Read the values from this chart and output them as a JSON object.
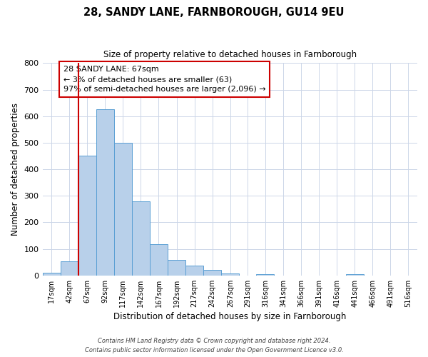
{
  "title": "28, SANDY LANE, FARNBOROUGH, GU14 9EU",
  "subtitle": "Size of property relative to detached houses in Farnborough",
  "xlabel": "Distribution of detached houses by size in Farnborough",
  "ylabel": "Number of detached properties",
  "bin_labels": [
    "17sqm",
    "42sqm",
    "67sqm",
    "92sqm",
    "117sqm",
    "142sqm",
    "167sqm",
    "192sqm",
    "217sqm",
    "242sqm",
    "267sqm",
    "291sqm",
    "316sqm",
    "341sqm",
    "366sqm",
    "391sqm",
    "416sqm",
    "441sqm",
    "466sqm",
    "491sqm",
    "516sqm"
  ],
  "bin_edges": [
    17,
    42,
    67,
    92,
    117,
    142,
    167,
    192,
    217,
    242,
    267,
    291,
    316,
    341,
    366,
    391,
    416,
    441,
    466,
    491,
    516
  ],
  "bar_heights": [
    10,
    52,
    450,
    625,
    500,
    280,
    117,
    60,
    37,
    22,
    8,
    0,
    5,
    0,
    0,
    0,
    0,
    5,
    0,
    0,
    0
  ],
  "bar_color": "#b8d0ea",
  "bar_edge_color": "#5a9fd4",
  "ylim": [
    0,
    800
  ],
  "yticks": [
    0,
    100,
    200,
    300,
    400,
    500,
    600,
    700,
    800
  ],
  "property_line_x": 67,
  "property_line_color": "#cc0000",
  "annotation_line1": "28 SANDY LANE: 67sqm",
  "annotation_line2": "← 3% of detached houses are smaller (63)",
  "annotation_line3": "97% of semi-detached houses are larger (2,096) →",
  "annotation_box_color": "#cc0000",
  "footer_line1": "Contains HM Land Registry data © Crown copyright and database right 2024.",
  "footer_line2": "Contains public sector information licensed under the Open Government Licence v3.0.",
  "bg_color": "#ffffff",
  "grid_color": "#ccd6e8"
}
